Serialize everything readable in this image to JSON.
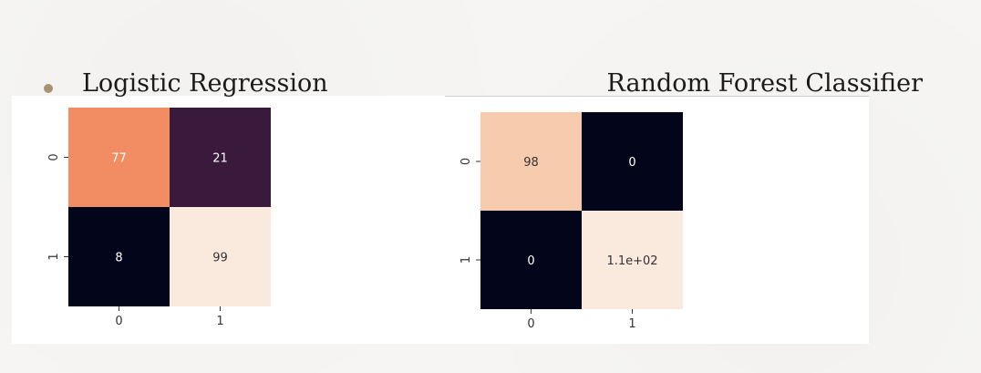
{
  "slide": {
    "bullet_heading_left": "Logistic Regression",
    "heading_right": "Random Forest Classifier"
  },
  "chart_data": [
    {
      "type": "heatmap",
      "x_categories": [
        "0",
        "1"
      ],
      "y_categories": [
        "0",
        "1"
      ],
      "values": [
        [
          77,
          21
        ],
        [
          8,
          99
        ]
      ],
      "labels": [
        [
          "77",
          "21"
        ],
        [
          "8",
          "99"
        ]
      ],
      "colors": [
        [
          "#f28c62",
          "#3a1a3c"
        ],
        [
          "#03051a",
          "#fae9dd"
        ]
      ],
      "label_colors": [
        [
          "#ffffff",
          "#ffffff"
        ],
        [
          "#ffffff",
          "#333333"
        ]
      ]
    },
    {
      "type": "heatmap",
      "x_categories": [
        "0",
        "1"
      ],
      "y_categories": [
        "0",
        "1"
      ],
      "values": [
        [
          98,
          0
        ],
        [
          0,
          110
        ]
      ],
      "labels": [
        [
          "98",
          "0"
        ],
        [
          "0",
          "1.1e+02"
        ]
      ],
      "colors": [
        [
          "#f7cbad",
          "#03051a"
        ],
        [
          "#03051a",
          "#fae9dd"
        ]
      ],
      "label_colors": [
        [
          "#333333",
          "#ffffff"
        ],
        [
          "#ffffff",
          "#333333"
        ]
      ]
    }
  ]
}
